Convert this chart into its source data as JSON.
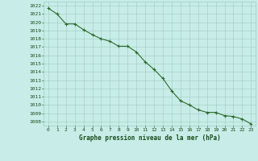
{
  "x": [
    0,
    1,
    2,
    3,
    4,
    5,
    6,
    7,
    8,
    9,
    10,
    11,
    12,
    13,
    14,
    15,
    16,
    17,
    18,
    19,
    20,
    21,
    22,
    23
  ],
  "y": [
    1021.7,
    1021.0,
    1019.8,
    1019.8,
    1019.1,
    1018.5,
    1018.0,
    1017.7,
    1017.1,
    1017.1,
    1016.4,
    1015.2,
    1014.3,
    1013.2,
    1011.7,
    1010.5,
    1010.0,
    1009.4,
    1009.1,
    1009.1,
    1008.7,
    1008.6,
    1008.3,
    1007.7
  ],
  "line_color": "#2d6a2d",
  "marker_color": "#2d6a2d",
  "bg_color": "#c8ede8",
  "grid_color": "#a0c8c0",
  "text_color": "#1a4a1a",
  "xlabel": "Graphe pression niveau de la mer (hPa)",
  "ylim_min": 1007.5,
  "ylim_max": 1022.5,
  "xlim_min": -0.5,
  "xlim_max": 23.5,
  "yticks": [
    1008,
    1009,
    1010,
    1011,
    1012,
    1013,
    1014,
    1015,
    1016,
    1017,
    1018,
    1019,
    1020,
    1021,
    1022
  ],
  "xticks": [
    0,
    1,
    2,
    3,
    4,
    5,
    6,
    7,
    8,
    9,
    10,
    11,
    12,
    13,
    14,
    15,
    16,
    17,
    18,
    19,
    20,
    21,
    22,
    23
  ]
}
